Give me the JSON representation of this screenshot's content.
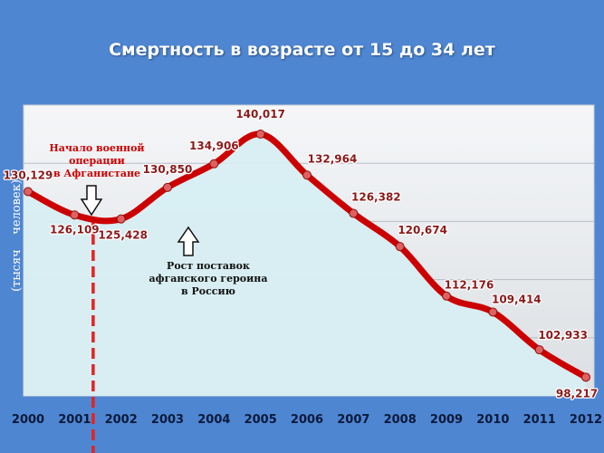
{
  "chart_data": {
    "type": "line",
    "title": "Смертность в возрасте от 15 до 34 лет",
    "ylabel": "(тысяч    человек)",
    "xlabel": "",
    "x": [
      "2000",
      "2001",
      "2002",
      "2003",
      "2004",
      "2005",
      "2006",
      "2007",
      "2008",
      "2009",
      "2010",
      "2011",
      "2012"
    ],
    "series": [
      {
        "values": [
          130129,
          126109,
          125428,
          130850,
          134906,
          140017,
          132964,
          126382,
          120674,
          112176,
          109414,
          102933,
          98217
        ]
      }
    ],
    "data_labels": [
      "130,129",
      "126,109",
      "125,428",
      "130,850",
      "134,906",
      "140,017",
      "132,964",
      "126,382",
      "120,674",
      "112,176",
      "109,414",
      "102,933",
      "98,217"
    ],
    "ylim": [
      95000,
      145000
    ],
    "grid": true,
    "line_color": "#cc0000",
    "area_color": "#d7eef2",
    "annotations": [
      {
        "lines": [
          "Начало военной",
          "операции",
          "в Афганистане"
        ],
        "color": "#cc0000",
        "at_x": 2001.4,
        "arrow": "down"
      },
      {
        "lines": [
          "Рост поставок",
          "афганского героина",
          "в Россию"
        ],
        "color": "#111111",
        "at_x": 2003.5,
        "arrow": "up"
      }
    ],
    "marker_x": 2001.4
  }
}
